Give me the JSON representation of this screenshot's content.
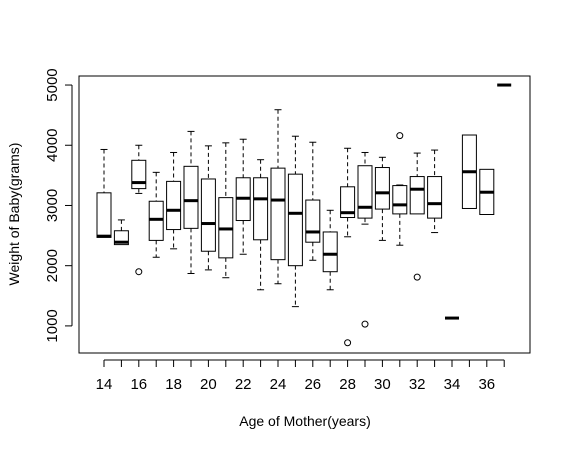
{
  "chart_data": {
    "type": "boxplot",
    "title": "",
    "xlabel": "Age of Mother(years)",
    "ylabel": "Weight of Baby(grams)",
    "ylim": [
      550,
      5150
    ],
    "y_ticks": [
      1000,
      2000,
      3000,
      4000,
      5000
    ],
    "x_tick_labels": [
      "14",
      "16",
      "18",
      "20",
      "22",
      "24",
      "26",
      "28",
      "30",
      "32",
      "34",
      "36"
    ],
    "grid": false,
    "legend": "none",
    "categories": [
      "14",
      "15",
      "16",
      "17",
      "18",
      "19",
      "20",
      "21",
      "22",
      "23",
      "24",
      "25",
      "26",
      "27",
      "28",
      "29",
      "30",
      "31",
      "32",
      "33",
      "34",
      "35",
      "36",
      "37"
    ],
    "boxes": [
      {
        "age": "14",
        "min": 2470,
        "q1": 2470,
        "median": 2490,
        "q3": 3210,
        "max": 3930,
        "outliers": []
      },
      {
        "age": "15",
        "min": 2350,
        "q1": 2350,
        "median": 2390,
        "q3": 2580,
        "max": 2760,
        "outliers": []
      },
      {
        "age": "16",
        "min": 3200,
        "q1": 3280,
        "median": 3380,
        "q3": 3750,
        "max": 4000,
        "outliers": [
          1900
        ]
      },
      {
        "age": "17",
        "min": 2140,
        "q1": 2420,
        "median": 2770,
        "q3": 3070,
        "max": 3550,
        "outliers": []
      },
      {
        "age": "18",
        "min": 2280,
        "q1": 2600,
        "median": 2920,
        "q3": 3400,
        "max": 3880,
        "outliers": []
      },
      {
        "age": "19",
        "min": 1870,
        "q1": 2620,
        "median": 3080,
        "q3": 3650,
        "max": 4230,
        "outliers": []
      },
      {
        "age": "20",
        "min": 1930,
        "q1": 2240,
        "median": 2700,
        "q3": 3440,
        "max": 3990,
        "outliers": []
      },
      {
        "age": "21",
        "min": 1800,
        "q1": 2130,
        "median": 2610,
        "q3": 3130,
        "max": 4040,
        "outliers": []
      },
      {
        "age": "22",
        "min": 2190,
        "q1": 2750,
        "median": 3120,
        "q3": 3460,
        "max": 4100,
        "outliers": []
      },
      {
        "age": "23",
        "min": 1600,
        "q1": 2430,
        "median": 3110,
        "q3": 3460,
        "max": 3760,
        "outliers": []
      },
      {
        "age": "24",
        "min": 1700,
        "q1": 2100,
        "median": 3090,
        "q3": 3620,
        "max": 4590,
        "outliers": []
      },
      {
        "age": "25",
        "min": 1320,
        "q1": 2000,
        "median": 2870,
        "q3": 3520,
        "max": 4150,
        "outliers": []
      },
      {
        "age": "26",
        "min": 2090,
        "q1": 2390,
        "median": 2560,
        "q3": 3090,
        "max": 4050,
        "outliers": []
      },
      {
        "age": "27",
        "min": 1600,
        "q1": 1900,
        "median": 2190,
        "q3": 2560,
        "max": 2920,
        "outliers": []
      },
      {
        "age": "28",
        "min": 2480,
        "q1": 2800,
        "median": 2880,
        "q3": 3310,
        "max": 3950,
        "outliers": [
          720
        ]
      },
      {
        "age": "29",
        "min": 2690,
        "q1": 2790,
        "median": 2970,
        "q3": 3660,
        "max": 3880,
        "outliers": [
          1030
        ]
      },
      {
        "age": "30",
        "min": 2420,
        "q1": 2940,
        "median": 3210,
        "q3": 3630,
        "max": 3800,
        "outliers": []
      },
      {
        "age": "31",
        "min": 2340,
        "q1": 2860,
        "median": 3010,
        "q3": 3330,
        "max": 3340,
        "outliers": [
          4160
        ]
      },
      {
        "age": "32",
        "min": 2860,
        "q1": 2860,
        "median": 3270,
        "q3": 3480,
        "max": 3870,
        "outliers": [
          1810
        ]
      },
      {
        "age": "33",
        "min": 2550,
        "q1": 2790,
        "median": 3030,
        "q3": 3480,
        "max": 3920,
        "outliers": []
      },
      {
        "age": "34",
        "min": 1130,
        "q1": 1130,
        "median": 1130,
        "q3": 1130,
        "max": 1130,
        "outliers": []
      },
      {
        "age": "35",
        "min": 2950,
        "q1": 2950,
        "median": 3560,
        "q3": 4170,
        "max": 4170,
        "outliers": []
      },
      {
        "age": "36",
        "min": 2850,
        "q1": 2850,
        "median": 3220,
        "q3": 3600,
        "max": 3600,
        "outliers": []
      },
      {
        "age": "37",
        "min": 5000,
        "q1": 5000,
        "median": 5000,
        "q3": 5000,
        "max": 5000,
        "outliers": []
      }
    ]
  }
}
